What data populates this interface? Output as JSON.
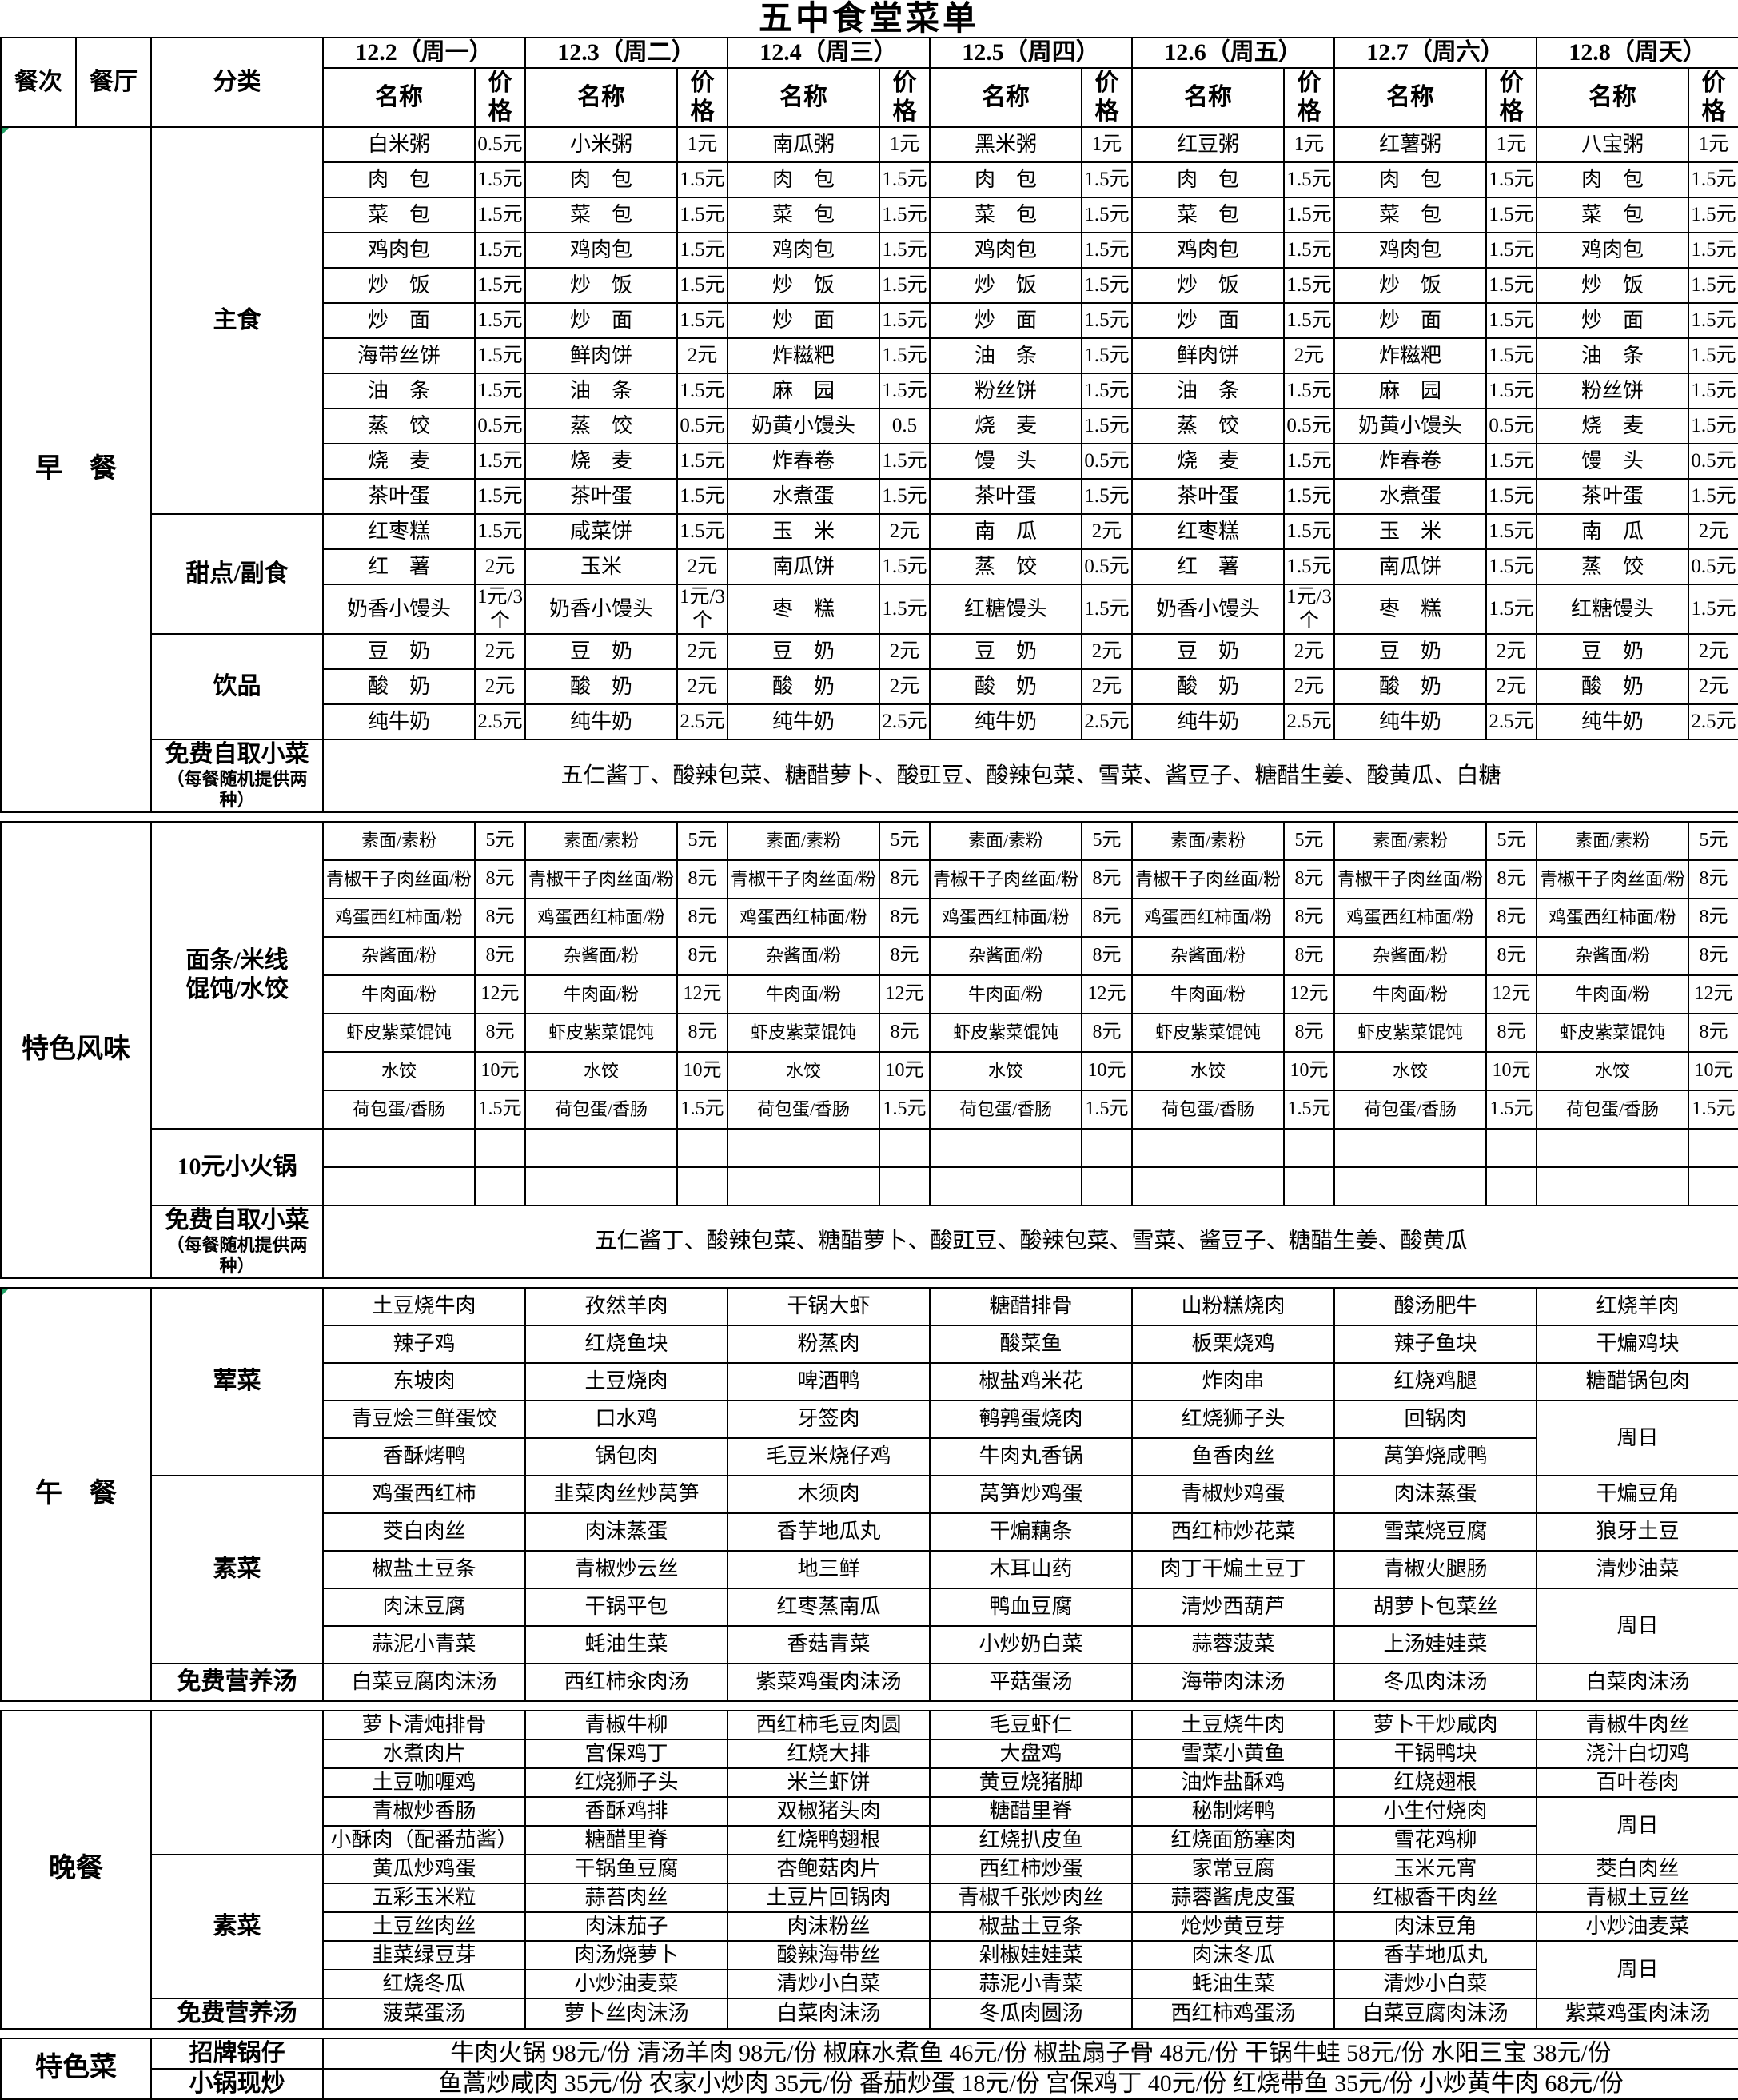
{
  "title": "五中食堂菜单",
  "header": {
    "meal": "餐次",
    "hall": "餐厅",
    "category": "分类",
    "name": "名称",
    "price": "价格",
    "days": [
      "12.2（周一）",
      "12.3（周二）",
      "12.4（周三）",
      "12.5（周四）",
      "12.6（周五）",
      "12.7（周六）",
      "12.8（周天）"
    ]
  },
  "sections": [
    {
      "id": "breakfast",
      "left": "早　餐",
      "groups": [
        {
          "label": "主食",
          "rows": [
            {
              "cells": [
                [
                  "白米粥",
                  "0.5元"
                ],
                [
                  "小米粥",
                  "1元"
                ],
                [
                  "南瓜粥",
                  "1元"
                ],
                [
                  "黑米粥",
                  "1元"
                ],
                [
                  "红豆粥",
                  "1元"
                ],
                [
                  "红薯粥",
                  "1元"
                ],
                [
                  "八宝粥",
                  "1元"
                ]
              ]
            },
            {
              "all": [
                "肉　包",
                "1.5元"
              ]
            },
            {
              "all": [
                "菜　包",
                "1.5元"
              ]
            },
            {
              "all": [
                "鸡肉包",
                "1.5元"
              ]
            },
            {
              "all": [
                "炒　饭",
                "1.5元"
              ]
            },
            {
              "all": [
                "炒　面",
                "1.5元"
              ]
            },
            {
              "cells": [
                [
                  "海带丝饼",
                  "1.5元"
                ],
                [
                  "鲜肉饼",
                  "2元"
                ],
                [
                  "炸糍粑",
                  "1.5元"
                ],
                [
                  "油　条",
                  "1.5元"
                ],
                [
                  "鲜肉饼",
                  "2元"
                ],
                [
                  "炸糍粑",
                  "1.5元"
                ],
                [
                  "油　条",
                  "1.5元"
                ]
              ]
            },
            {
              "cells": [
                [
                  "油　条",
                  "1.5元"
                ],
                [
                  "油　条",
                  "1.5元"
                ],
                [
                  "麻　园",
                  "1.5元"
                ],
                [
                  "粉丝饼",
                  "1.5元"
                ],
                [
                  "油　条",
                  "1.5元"
                ],
                [
                  "麻　园",
                  "1.5元"
                ],
                [
                  "粉丝饼",
                  "1.5元"
                ]
              ]
            },
            {
              "cells": [
                [
                  "蒸　饺",
                  "0.5元"
                ],
                [
                  "蒸　饺",
                  "0.5元"
                ],
                [
                  "奶黄小馒头",
                  "0.5"
                ],
                [
                  "烧　麦",
                  "1.5元"
                ],
                [
                  "蒸　饺",
                  "0.5元"
                ],
                [
                  "奶黄小馒头",
                  "0.5元"
                ],
                [
                  "烧　麦",
                  "1.5元"
                ]
              ]
            },
            {
              "cells": [
                [
                  "烧　麦",
                  "1.5元"
                ],
                [
                  "烧　麦",
                  "1.5元"
                ],
                [
                  "炸春卷",
                  "1.5元"
                ],
                [
                  "馒　头",
                  "0.5元"
                ],
                [
                  "烧　麦",
                  "1.5元"
                ],
                [
                  "炸春卷",
                  "1.5元"
                ],
                [
                  "馒　头",
                  "0.5元"
                ]
              ]
            },
            {
              "cells": [
                [
                  "茶叶蛋",
                  "1.5元"
                ],
                [
                  "茶叶蛋",
                  "1.5元"
                ],
                [
                  "水煮蛋",
                  "1.5元"
                ],
                [
                  "茶叶蛋",
                  "1.5元"
                ],
                [
                  "茶叶蛋",
                  "1.5元"
                ],
                [
                  "水煮蛋",
                  "1.5元"
                ],
                [
                  "茶叶蛋",
                  "1.5元"
                ]
              ]
            }
          ]
        },
        {
          "label": "甜点/副食",
          "rows": [
            {
              "cells": [
                [
                  "红枣糕",
                  "1.5元"
                ],
                [
                  "咸菜饼",
                  "1.5元"
                ],
                [
                  "玉　米",
                  "2元"
                ],
                [
                  "南　瓜",
                  "2元"
                ],
                [
                  "红枣糕",
                  "1.5元"
                ],
                [
                  "玉　米",
                  "1.5元"
                ],
                [
                  "南　瓜",
                  "2元"
                ]
              ]
            },
            {
              "cells": [
                [
                  "红　薯",
                  "2元"
                ],
                [
                  "玉米",
                  "2元"
                ],
                [
                  "南瓜饼",
                  "1.5元"
                ],
                [
                  "蒸　饺",
                  "0.5元"
                ],
                [
                  "红　薯",
                  "1.5元"
                ],
                [
                  "南瓜饼",
                  "1.5元"
                ],
                [
                  "蒸　饺",
                  "0.5元"
                ]
              ]
            },
            {
              "cells": [
                [
                  "奶香小馒头",
                  "1元/3个"
                ],
                [
                  "奶香小馒头",
                  "1元/3个"
                ],
                [
                  "枣　糕",
                  "1.5元"
                ],
                [
                  "红糖馒头",
                  "1.5元"
                ],
                [
                  "奶香小馒头",
                  "1元/3个"
                ],
                [
                  "枣　糕",
                  "1.5元"
                ],
                [
                  "红糖馒头",
                  "1.5元"
                ]
              ]
            }
          ]
        },
        {
          "label": "饮品",
          "rows": [
            {
              "all": [
                "豆　奶",
                "2元"
              ]
            },
            {
              "all": [
                "酸　奶",
                "2元"
              ]
            },
            {
              "all": [
                "纯牛奶",
                "2.5元"
              ]
            }
          ]
        }
      ],
      "free": {
        "label": "免费自取小菜",
        "sub": "（每餐随机提供两种）",
        "text": "五仁酱丁、酸辣包菜、糖醋萝卜、酸豇豆、酸辣包菜、雪菜、酱豆子、糖醋生姜、酸黄瓜、白糖"
      }
    },
    {
      "id": "special-flavor",
      "left": "特色风味",
      "groups": [
        {
          "label": "面条/米线\n馄饨/水饺",
          "rows": [
            {
              "all": [
                "素面/素粉",
                "5元"
              ]
            },
            {
              "all": [
                "青椒干子肉丝面/粉",
                "8元"
              ]
            },
            {
              "all": [
                "鸡蛋西红柿面/粉",
                "8元"
              ]
            },
            {
              "all": [
                "杂酱面/粉",
                "8元"
              ]
            },
            {
              "all": [
                "牛肉面/粉",
                "12元"
              ]
            },
            {
              "all": [
                "虾皮紫菜馄饨",
                "8元"
              ]
            },
            {
              "all": [
                "水饺",
                "10元"
              ]
            },
            {
              "all": [
                "荷包蛋/香肠",
                "1.5元"
              ]
            }
          ]
        },
        {
          "label": "10元小火锅",
          "rows": [
            {
              "all": [
                "",
                ""
              ]
            },
            {
              "all": [
                "",
                ""
              ]
            }
          ]
        }
      ],
      "free": {
        "label": "免费自取小菜",
        "sub": "（每餐随机提供两种）",
        "text": "五仁酱丁、酸辣包菜、糖醋萝卜、酸豇豆、酸辣包菜、雪菜、酱豆子、糖醋生姜、酸黄瓜"
      }
    },
    {
      "id": "lunch",
      "left": "午　餐",
      "groups": [
        {
          "label": "荤菜",
          "rows": [
            {
              "cells": [
                "土豆烧牛肉",
                "孜然羊肉",
                "干锅大虾",
                "糖醋排骨",
                "山粉糕烧肉",
                "酸汤肥牛",
                "红烧羊肉"
              ]
            },
            {
              "cells": [
                "辣子鸡",
                "红烧鱼块",
                "粉蒸肉",
                "酸菜鱼",
                "板栗烧鸡",
                "辣子鱼块",
                "干煸鸡块"
              ]
            },
            {
              "cells": [
                "东坡肉",
                "土豆烧肉",
                "啤酒鸭",
                "椒盐鸡米花",
                "炸肉串",
                "红烧鸡腿",
                "糖醋锅包肉"
              ]
            },
            {
              "cells": [
                "青豆烩三鲜蛋饺",
                "口水鸡",
                "牙签肉",
                "鹌鹑蛋烧肉",
                "红烧狮子头",
                "回锅肉",
                {
                  "t": "周日",
                  "rs": 2
                }
              ]
            },
            {
              "cells": [
                "香酥烤鸭",
                "锅包肉",
                "毛豆米烧仔鸡",
                "牛肉丸香锅",
                "鱼香肉丝",
                "莴笋烧咸鸭",
                null
              ]
            }
          ]
        },
        {
          "label": "素菜",
          "rows": [
            {
              "cells": [
                "鸡蛋西红柿",
                "韭菜肉丝炒莴笋",
                "木须肉",
                "莴笋炒鸡蛋",
                "青椒炒鸡蛋",
                "肉沫蒸蛋",
                "干煸豆角"
              ]
            },
            {
              "cells": [
                "茭白肉丝",
                "肉沫蒸蛋",
                "香芋地瓜丸",
                "干煸藕条",
                "西红柿炒花菜",
                "雪菜烧豆腐",
                "狼牙土豆"
              ]
            },
            {
              "cells": [
                "椒盐土豆条",
                "青椒炒云丝",
                "地三鲜",
                "木耳山药",
                "肉丁干煸土豆丁",
                "青椒火腿肠",
                "清炒油菜"
              ]
            },
            {
              "cells": [
                "肉沫豆腐",
                "干锅平包",
                "红枣蒸南瓜",
                "鸭血豆腐",
                "清炒西葫芦",
                "胡萝卜包菜丝",
                {
                  "t": "周日",
                  "rs": 2
                }
              ]
            },
            {
              "cells": [
                "蒜泥小青菜",
                "蚝油生菜",
                "香菇青菜",
                "小炒奶白菜",
                "蒜蓉菠菜",
                "上汤娃娃菜",
                null
              ]
            }
          ]
        },
        {
          "label": "免费营养汤",
          "rows": [
            {
              "cells": [
                "白菜豆腐肉沫汤",
                "西红柿汆肉汤",
                "紫菜鸡蛋肉沫汤",
                "平菇蛋汤",
                "海带肉沫汤",
                "冬瓜肉沫汤",
                "白菜肉沫汤"
              ]
            }
          ]
        }
      ]
    },
    {
      "id": "dinner",
      "left": "晚餐",
      "groups": [
        {
          "label": "",
          "rows": [
            {
              "cells": [
                "萝卜清炖排骨",
                "青椒牛柳",
                "西红柿毛豆肉圆",
                "毛豆虾仁",
                "土豆烧牛肉",
                "萝卜干炒咸肉",
                "青椒牛肉丝"
              ]
            },
            {
              "cells": [
                "水煮肉片",
                "宫保鸡丁",
                "红烧大排",
                "大盘鸡",
                "雪菜小黄鱼",
                "干锅鸭块",
                "浇汁白切鸡"
              ]
            },
            {
              "cells": [
                "土豆咖喱鸡",
                "红烧狮子头",
                "米兰虾饼",
                "黄豆烧猪脚",
                "油炸盐酥鸡",
                "红烧翅根",
                "百叶卷肉"
              ]
            },
            {
              "cells": [
                "青椒炒香肠",
                "香酥鸡排",
                "双椒猪头肉",
                "糖醋里脊",
                "秘制烤鸭",
                "小生付烧肉",
                {
                  "t": "周日",
                  "rs": 2
                }
              ]
            },
            {
              "cells": [
                "小酥肉（配番茄酱）",
                "糖醋里脊",
                "红烧鸭翅根",
                "红烧扒皮鱼",
                "红烧面筋塞肉",
                "雪花鸡柳",
                null
              ]
            }
          ]
        },
        {
          "label": "素菜",
          "rows": [
            {
              "cells": [
                "黄瓜炒鸡蛋",
                "干锅鱼豆腐",
                "杏鲍菇肉片",
                "西红柿炒蛋",
                "家常豆腐",
                "玉米元宵",
                "茭白肉丝"
              ]
            },
            {
              "cells": [
                "五彩玉米粒",
                "蒜苔肉丝",
                "土豆片回锅肉",
                "青椒千张炒肉丝",
                "蒜蓉酱虎皮蛋",
                "红椒香干肉丝",
                "青椒土豆丝"
              ]
            },
            {
              "cells": [
                "土豆丝肉丝",
                "肉沫茄子",
                "肉沫粉丝",
                "椒盐土豆条",
                "炝炒黄豆芽",
                "肉沫豆角",
                "小炒油麦菜"
              ]
            },
            {
              "cells": [
                "韭菜绿豆芽",
                "肉汤烧萝卜",
                "酸辣海带丝",
                "剁椒娃娃菜",
                "肉沫冬瓜",
                "香芋地瓜丸",
                {
                  "t": "周日",
                  "rs": 2
                }
              ]
            },
            {
              "cells": [
                "红烧冬瓜",
                "小炒油麦菜",
                "清炒小白菜",
                "蒜泥小青菜",
                "蚝油生菜",
                "清炒小白菜",
                null
              ]
            }
          ]
        },
        {
          "label": "免费营养汤",
          "rows": [
            {
              "cells": [
                "菠菜蛋汤",
                "萝卜丝肉沫汤",
                "白菜肉沫汤",
                "冬瓜肉圆汤",
                "西红柿鸡蛋汤",
                "白菜豆腐肉沫汤",
                "紫菜鸡蛋肉沫汤"
              ]
            }
          ]
        }
      ]
    }
  ],
  "special_dishes": {
    "label": "特色菜",
    "rows": [
      {
        "label": "招牌锅仔",
        "text": "牛肉火锅 98元/份 清汤羊肉 98元/份 椒麻水煮鱼 46元/份 椒盐扇子骨 48元/份 干锅牛蛙 58元/份 水阳三宝 38元/份"
      },
      {
        "label": "小锅现炒",
        "text": "鱼蒿炒咸肉 35元/份 农家小炒肉 35元/份 番茄炒蛋 18元/份 宫保鸡丁 40元/份 红烧带鱼 35元/份 小炒黄牛肉 68元/份"
      }
    ]
  }
}
